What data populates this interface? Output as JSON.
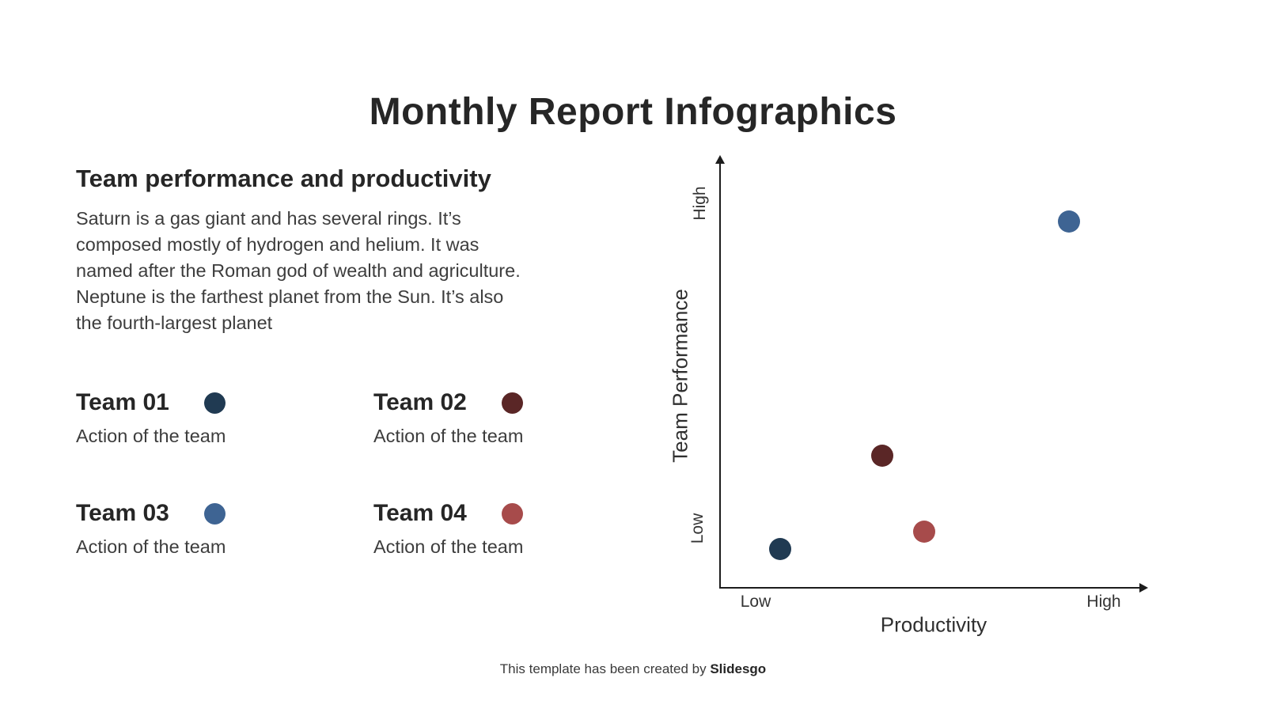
{
  "title": "Monthly Report Infographics",
  "section": {
    "heading": "Team performance and productivity",
    "paragraph": "Saturn is a gas giant and has several rings. It’s composed mostly of hydrogen and helium. It was named after the Roman god of wealth and agriculture. Neptune is the farthest planet from the Sun. It’s also the fourth-largest planet"
  },
  "teams": [
    {
      "name": "Team 01",
      "description": "Action of the team",
      "color": "#203a52"
    },
    {
      "name": "Team 02",
      "description": "Action of the team",
      "color": "#5a2626"
    },
    {
      "name": "Team 03",
      "description": "Action of the team",
      "color": "#3e6493"
    },
    {
      "name": "Team 04",
      "description": "Action of the team",
      "color": "#a74b4b"
    }
  ],
  "chart_data": {
    "type": "scatter",
    "title": "",
    "xlabel": "Productivity",
    "ylabel": "Team Performance",
    "x_ticks": [
      "Low",
      "High"
    ],
    "y_ticks": [
      "Low",
      "High"
    ],
    "xlim": [
      0,
      1
    ],
    "ylim": [
      0,
      1
    ],
    "grid": false,
    "legend_position": "none",
    "points": [
      {
        "label": "Team 01",
        "x": 0.14,
        "y": 0.09,
        "color": "#203a52"
      },
      {
        "label": "Team 02",
        "x": 0.38,
        "y": 0.31,
        "color": "#5a2626"
      },
      {
        "label": "Team 04",
        "x": 0.48,
        "y": 0.13,
        "color": "#a74b4b"
      },
      {
        "label": "Team 03",
        "x": 0.82,
        "y": 0.86,
        "color": "#3e6493"
      }
    ]
  },
  "footer": {
    "text": "This template has been created by ",
    "brand": "Slidesgo"
  }
}
